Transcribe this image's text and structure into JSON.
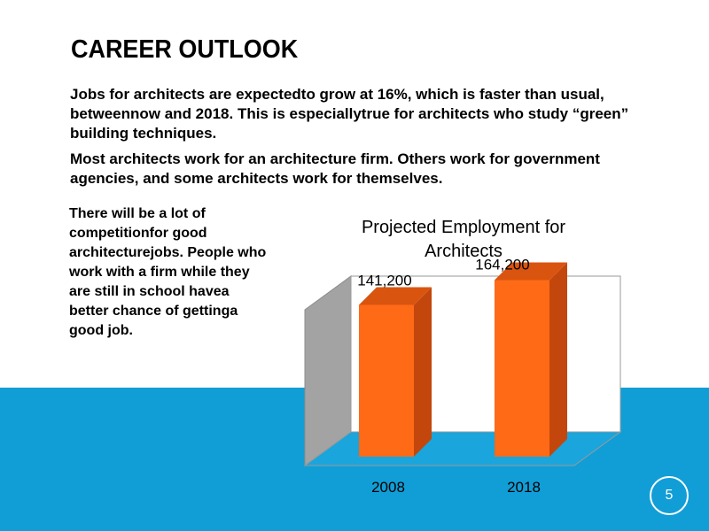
{
  "slide": {
    "title": "CAREER OUTLOOK",
    "paragraph1": "Jobs for architects are expectedto grow at 16%, which is faster than usual, betweennow and 2018. This is especiallytrue for architects who study “green” building techniques.",
    "paragraph2": "Most architects work for an architecture firm. Others work for government agencies, and some architects work for themselves.",
    "paragraph3": "There will be a lot of competitionfor good architecturejobs. People who work with a firm while they are still in school havea better chance of gettinga good job.",
    "page_number": "5"
  },
  "colors": {
    "band": "#119ed6",
    "bar_front": "#ff6a17",
    "bar_side": "#c3470c",
    "bar_top": "#d9540f",
    "wall": "#a3a3a3"
  },
  "chart_data": {
    "type": "bar",
    "title_lines": [
      "Projected Employment for",
      "Architects"
    ],
    "categories": [
      "2008",
      "2018"
    ],
    "values": [
      141200,
      164200
    ],
    "value_labels": [
      "141,200",
      "164,200"
    ],
    "ylim": [
      0,
      200000
    ],
    "grid": false,
    "legend": "none",
    "style": "3d"
  }
}
